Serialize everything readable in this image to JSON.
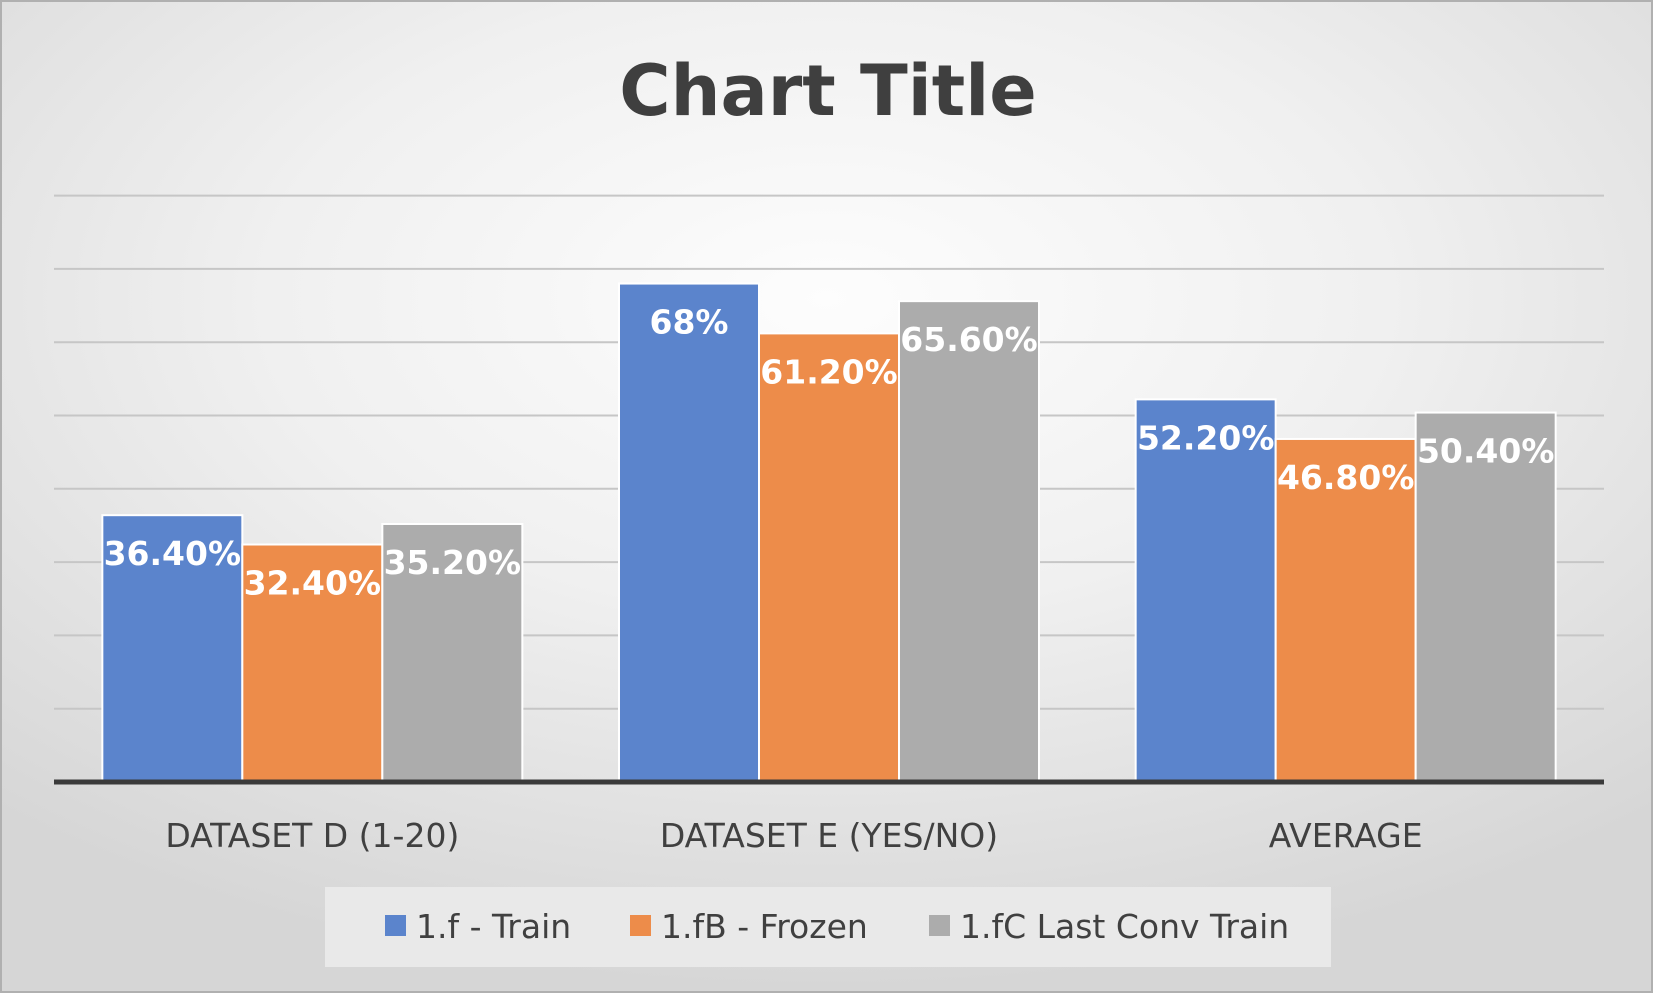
{
  "chart_data": {
    "type": "bar",
    "title": "Chart Title",
    "categories": [
      "DATASET D (1-20)",
      "DATASET E (YES/NO)",
      "AVERAGE"
    ],
    "series": [
      {
        "name": "1.f - Train",
        "values": [
          36.4,
          68,
          52.2
        ],
        "labels": [
          "36.40%",
          "68%",
          "52.20%"
        ],
        "color": "#5b84cc"
      },
      {
        "name": "1.fB - Frozen",
        "values": [
          32.4,
          61.2,
          46.8
        ],
        "labels": [
          "32.40%",
          "61.20%",
          "46.80%"
        ],
        "color": "#ed8c4a"
      },
      {
        "name": "1.fC Last Conv Train",
        "values": [
          35.2,
          65.6,
          50.4
        ],
        "labels": [
          "35.20%",
          "65.60%",
          "50.40%"
        ],
        "color": "#acacac"
      }
    ],
    "ylim": [
      0,
      80
    ],
    "gridlines": true,
    "y_tick_labels_shown": false,
    "legend_position": "bottom"
  }
}
